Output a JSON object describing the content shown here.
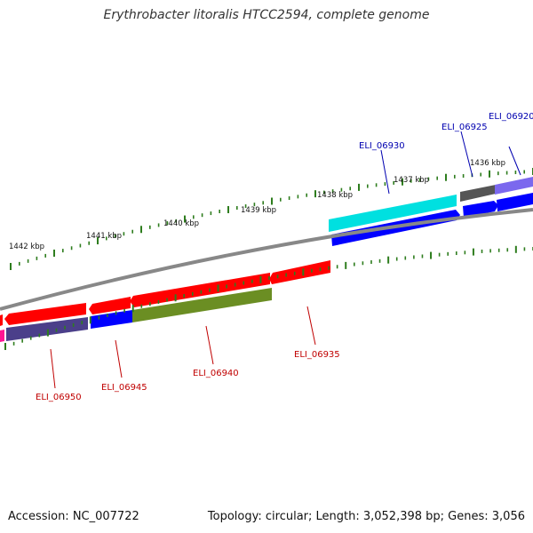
{
  "title": "Erythrobacter litoralis HTCC2594, complete genome",
  "footer": {
    "accession": "Accession: NC_007722",
    "summary": "Topology: circular; Length: 3,052,398 bp; Genes: 3,056"
  },
  "scale_labels": [
    "1436 kbp",
    "1437 kbp",
    "1438 kbp",
    "1439 kbp",
    "1440 kbp",
    "1441 kbp",
    "1442 kbp"
  ],
  "genes": [
    {
      "id": "ELI_06920",
      "strand": "+",
      "color": "#0000b0"
    },
    {
      "id": "ELI_06925",
      "strand": "+",
      "color": "#0000b0"
    },
    {
      "id": "ELI_06930",
      "strand": "+",
      "color": "#0000b0"
    },
    {
      "id": "ELI_06935",
      "strand": "-",
      "color": "#c00000"
    },
    {
      "id": "ELI_06940",
      "strand": "-",
      "color": "#c00000"
    },
    {
      "id": "ELI_06945",
      "strand": "-",
      "color": "#c00000"
    },
    {
      "id": "ELI_06950",
      "strand": "-",
      "color": "#c00000"
    }
  ],
  "colors": {
    "forward_cds": "#0000ff",
    "reverse_cds": "#ff0000",
    "tick": "#2e7d1e",
    "backbone": "#888888",
    "cyan_feature": "#00e0e0",
    "olive_feature": "#6b8e23",
    "slate_feature": "#4b3f8a",
    "lavender_feature": "#7b68ee",
    "grey_feature": "#555555",
    "magenta_feature": "#ff1493"
  }
}
